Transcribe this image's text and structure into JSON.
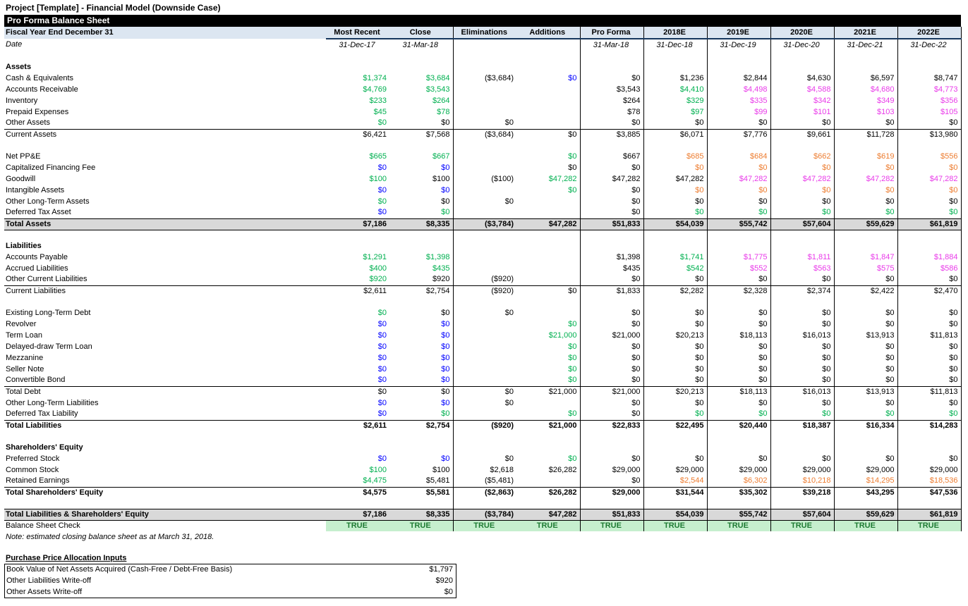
{
  "page_title": "Project [Template] - Financial Model (Downside Case)",
  "sheet": {
    "banner": "Pro Forma Balance Sheet",
    "header_label": "Fiscal Year End December 31",
    "date_label": "Date",
    "columns": [
      "Most Recent",
      "Close",
      "Eliminations",
      "Additions",
      "Pro Forma",
      "2018E",
      "2019E",
      "2020E",
      "2021E",
      "2022E"
    ],
    "dates": [
      "31-Dec-17",
      "31-Mar-18",
      "",
      "",
      "31-Mar-18",
      "31-Dec-18",
      "31-Dec-19",
      "31-Dec-20",
      "31-Dec-21",
      "31-Dec-22"
    ],
    "rows": [
      {
        "t": "blank"
      },
      {
        "t": "section",
        "label": "Assets"
      },
      {
        "t": "data",
        "label": "Cash & Equivalents",
        "v": [
          "$1,374",
          "$3,684",
          "($3,684)",
          "$0",
          "$0",
          "$1,236",
          "$2,844",
          "$4,630",
          "$6,597",
          "$8,747"
        ],
        "c": [
          "g",
          "g",
          "k",
          "b",
          "k",
          "k",
          "k",
          "k",
          "k",
          "k"
        ]
      },
      {
        "t": "data",
        "label": "Accounts Receivable",
        "v": [
          "$4,769",
          "$3,543",
          "",
          "",
          "$3,543",
          "$4,410",
          "$4,498",
          "$4,588",
          "$4,680",
          "$4,773"
        ],
        "c": [
          "g",
          "g",
          "",
          "",
          "k",
          "g",
          "m",
          "m",
          "m",
          "m"
        ]
      },
      {
        "t": "data",
        "label": "Inventory",
        "v": [
          "$233",
          "$264",
          "",
          "",
          "$264",
          "$329",
          "$335",
          "$342",
          "$349",
          "$356"
        ],
        "c": [
          "g",
          "g",
          "",
          "",
          "k",
          "g",
          "m",
          "m",
          "m",
          "m"
        ]
      },
      {
        "t": "data",
        "label": "Prepaid Expenses",
        "v": [
          "$45",
          "$78",
          "",
          "",
          "$78",
          "$97",
          "$99",
          "$101",
          "$103",
          "$105"
        ],
        "c": [
          "g",
          "g",
          "",
          "",
          "k",
          "g",
          "m",
          "m",
          "m",
          "m"
        ]
      },
      {
        "t": "data",
        "label": "Other Assets",
        "v": [
          "$0",
          "$0",
          "$0",
          "",
          "$0",
          "$0",
          "$0",
          "$0",
          "$0",
          "$0"
        ],
        "c": [
          "g",
          "k",
          "k",
          "",
          "k",
          "k",
          "k",
          "k",
          "k",
          "k"
        ]
      },
      {
        "t": "subtotal",
        "label": "Current Assets",
        "v": [
          "$6,421",
          "$7,568",
          "($3,684)",
          "$0",
          "$3,885",
          "$6,071",
          "$7,776",
          "$9,661",
          "$11,728",
          "$13,980"
        ]
      },
      {
        "t": "blank"
      },
      {
        "t": "data",
        "label": "Net PP&E",
        "v": [
          "$665",
          "$667",
          "",
          "$0",
          "$667",
          "$685",
          "$684",
          "$662",
          "$619",
          "$556"
        ],
        "c": [
          "g",
          "g",
          "",
          "g",
          "k",
          "o",
          "o",
          "o",
          "o",
          "o"
        ]
      },
      {
        "t": "data",
        "label": "Capitalized Financing Fee",
        "v": [
          "$0",
          "$0",
          "",
          "$0",
          "$0",
          "$0",
          "$0",
          "$0",
          "$0",
          "$0"
        ],
        "c": [
          "b",
          "b",
          "",
          "k",
          "k",
          "o",
          "o",
          "o",
          "o",
          "o"
        ]
      },
      {
        "t": "data",
        "label": "Goodwill",
        "v": [
          "$100",
          "$100",
          "($100)",
          "$47,282",
          "$47,282",
          "$47,282",
          "$47,282",
          "$47,282",
          "$47,282",
          "$47,282"
        ],
        "c": [
          "g",
          "k",
          "k",
          "g",
          "k",
          "k",
          "m",
          "m",
          "m",
          "m"
        ]
      },
      {
        "t": "data",
        "label": "Intangible Assets",
        "v": [
          "$0",
          "$0",
          "",
          "$0",
          "$0",
          "$0",
          "$0",
          "$0",
          "$0",
          "$0"
        ],
        "c": [
          "b",
          "b",
          "",
          "g",
          "k",
          "o",
          "o",
          "o",
          "o",
          "o"
        ]
      },
      {
        "t": "data",
        "label": "Other Long-Term Assets",
        "v": [
          "$0",
          "$0",
          "$0",
          "",
          "$0",
          "$0",
          "$0",
          "$0",
          "$0",
          "$0"
        ],
        "c": [
          "g",
          "k",
          "k",
          "",
          "k",
          "k",
          "k",
          "k",
          "k",
          "k"
        ]
      },
      {
        "t": "data",
        "label": "Deferred Tax Asset",
        "v": [
          "$0",
          "$0",
          "",
          "",
          "$0",
          "$0",
          "$0",
          "$0",
          "$0",
          "$0"
        ],
        "c": [
          "b",
          "g",
          "",
          "",
          "k",
          "g",
          "g",
          "g",
          "g",
          "g"
        ]
      },
      {
        "t": "total",
        "label": "Total Assets",
        "v": [
          "$7,186",
          "$8,335",
          "($3,784)",
          "$47,282",
          "$51,833",
          "$54,039",
          "$55,742",
          "$57,604",
          "$59,629",
          "$61,819"
        ]
      },
      {
        "t": "blank"
      },
      {
        "t": "section",
        "label": "Liabilities"
      },
      {
        "t": "data",
        "label": "Accounts Payable",
        "v": [
          "$1,291",
          "$1,398",
          "",
          "",
          "$1,398",
          "$1,741",
          "$1,775",
          "$1,811",
          "$1,847",
          "$1,884"
        ],
        "c": [
          "g",
          "g",
          "",
          "",
          "k",
          "g",
          "m",
          "m",
          "m",
          "m"
        ]
      },
      {
        "t": "data",
        "label": "Accrued Liabilities",
        "v": [
          "$400",
          "$435",
          "",
          "",
          "$435",
          "$542",
          "$552",
          "$563",
          "$575",
          "$586"
        ],
        "c": [
          "g",
          "g",
          "",
          "",
          "k",
          "g",
          "m",
          "m",
          "m",
          "m"
        ]
      },
      {
        "t": "data",
        "label": "Other Current Liabilities",
        "v": [
          "$920",
          "$920",
          "($920)",
          "",
          "$0",
          "$0",
          "$0",
          "$0",
          "$0",
          "$0"
        ],
        "c": [
          "g",
          "k",
          "k",
          "",
          "k",
          "k",
          "k",
          "k",
          "k",
          "k"
        ]
      },
      {
        "t": "subtotal",
        "label": "Current Liabilities",
        "v": [
          "$2,611",
          "$2,754",
          "($920)",
          "$0",
          "$1,833",
          "$2,282",
          "$2,328",
          "$2,374",
          "$2,422",
          "$2,470"
        ]
      },
      {
        "t": "blank"
      },
      {
        "t": "data",
        "label": "Existing Long-Term Debt",
        "v": [
          "$0",
          "$0",
          "$0",
          "",
          "$0",
          "$0",
          "$0",
          "$0",
          "$0",
          "$0"
        ],
        "c": [
          "g",
          "k",
          "k",
          "",
          "k",
          "k",
          "k",
          "k",
          "k",
          "k"
        ]
      },
      {
        "t": "data",
        "label": "Revolver",
        "v": [
          "$0",
          "$0",
          "",
          "$0",
          "$0",
          "$0",
          "$0",
          "$0",
          "$0",
          "$0"
        ],
        "c": [
          "b",
          "b",
          "",
          "g",
          "k",
          "k",
          "k",
          "k",
          "k",
          "k"
        ]
      },
      {
        "t": "data",
        "label": "Term Loan",
        "v": [
          "$0",
          "$0",
          "",
          "$21,000",
          "$21,000",
          "$20,213",
          "$18,113",
          "$16,013",
          "$13,913",
          "$11,813"
        ],
        "c": [
          "b",
          "b",
          "",
          "g",
          "k",
          "k",
          "k",
          "k",
          "k",
          "k"
        ]
      },
      {
        "t": "data",
        "label": "Delayed-draw Term Loan",
        "v": [
          "$0",
          "$0",
          "",
          "$0",
          "$0",
          "$0",
          "$0",
          "$0",
          "$0",
          "$0"
        ],
        "c": [
          "b",
          "b",
          "",
          "g",
          "k",
          "k",
          "k",
          "k",
          "k",
          "k"
        ]
      },
      {
        "t": "data",
        "label": "Mezzanine",
        "v": [
          "$0",
          "$0",
          "",
          "$0",
          "$0",
          "$0",
          "$0",
          "$0",
          "$0",
          "$0"
        ],
        "c": [
          "b",
          "b",
          "",
          "g",
          "k",
          "k",
          "k",
          "k",
          "k",
          "k"
        ]
      },
      {
        "t": "data",
        "label": "Seller Note",
        "v": [
          "$0",
          "$0",
          "",
          "$0",
          "$0",
          "$0",
          "$0",
          "$0",
          "$0",
          "$0"
        ],
        "c": [
          "b",
          "b",
          "",
          "g",
          "k",
          "k",
          "k",
          "k",
          "k",
          "k"
        ]
      },
      {
        "t": "data",
        "label": "Convertible Bond",
        "v": [
          "$0",
          "$0",
          "",
          "$0",
          "$0",
          "$0",
          "$0",
          "$0",
          "$0",
          "$0"
        ],
        "c": [
          "b",
          "b",
          "",
          "g",
          "k",
          "k",
          "k",
          "k",
          "k",
          "k"
        ]
      },
      {
        "t": "subtotal",
        "label": "Total Debt",
        "v": [
          "$0",
          "$0",
          "$0",
          "$21,000",
          "$21,000",
          "$20,213",
          "$18,113",
          "$16,013",
          "$13,913",
          "$11,813"
        ]
      },
      {
        "t": "data",
        "label": "Other Long-Term Liabilities",
        "v": [
          "$0",
          "$0",
          "$0",
          "",
          "$0",
          "$0",
          "$0",
          "$0",
          "$0",
          "$0"
        ],
        "c": [
          "b",
          "b",
          "k",
          "",
          "k",
          "k",
          "k",
          "k",
          "k",
          "k"
        ]
      },
      {
        "t": "data",
        "label": "Deferred Tax Liability",
        "v": [
          "$0",
          "$0",
          "",
          "$0",
          "$0",
          "$0",
          "$0",
          "$0",
          "$0",
          "$0"
        ],
        "c": [
          "b",
          "g",
          "",
          "g",
          "k",
          "g",
          "g",
          "g",
          "g",
          "g"
        ]
      },
      {
        "t": "subtotal",
        "bold": true,
        "label": "Total Liabilities",
        "v": [
          "$2,611",
          "$2,754",
          "($920)",
          "$21,000",
          "$22,833",
          "$22,495",
          "$20,440",
          "$18,387",
          "$16,334",
          "$14,283"
        ]
      },
      {
        "t": "blank"
      },
      {
        "t": "section",
        "label": "Shareholders' Equity"
      },
      {
        "t": "data",
        "label": "Preferred Stock",
        "v": [
          "$0",
          "$0",
          "$0",
          "$0",
          "$0",
          "$0",
          "$0",
          "$0",
          "$0",
          "$0"
        ],
        "c": [
          "b",
          "b",
          "k",
          "g",
          "k",
          "k",
          "k",
          "k",
          "k",
          "k"
        ]
      },
      {
        "t": "data",
        "label": "Common Stock",
        "v": [
          "$100",
          "$100",
          "$2,618",
          "$26,282",
          "$29,000",
          "$29,000",
          "$29,000",
          "$29,000",
          "$29,000",
          "$29,000"
        ],
        "c": [
          "g",
          "k",
          "k",
          "k",
          "k",
          "k",
          "k",
          "k",
          "k",
          "k"
        ]
      },
      {
        "t": "data",
        "label": "Retained Earnings",
        "v": [
          "$4,475",
          "$5,481",
          "($5,481)",
          "",
          "$0",
          "$2,544",
          "$6,302",
          "$10,218",
          "$14,295",
          "$18,536"
        ],
        "c": [
          "g",
          "k",
          "k",
          "",
          "k",
          "o",
          "o",
          "o",
          "o",
          "o"
        ]
      },
      {
        "t": "subtotal",
        "bold": true,
        "label": "Total Shareholders' Equity",
        "v": [
          "$4,575",
          "$5,581",
          "($2,863)",
          "$26,282",
          "$29,000",
          "$31,544",
          "$35,302",
          "$39,218",
          "$43,295",
          "$47,536"
        ]
      },
      {
        "t": "blank"
      },
      {
        "t": "total",
        "label": "Total Liabilities & Shareholders' Equity",
        "v": [
          "$7,186",
          "$8,335",
          "($3,784)",
          "$47,282",
          "$51,833",
          "$54,039",
          "$55,742",
          "$57,604",
          "$59,629",
          "$61,819"
        ]
      },
      {
        "t": "check",
        "label": "Balance Sheet Check",
        "v": [
          "TRUE",
          "TRUE",
          "TRUE",
          "TRUE",
          "TRUE",
          "TRUE",
          "TRUE",
          "TRUE",
          "TRUE",
          "TRUE"
        ]
      },
      {
        "t": "note",
        "label": "Note: estimated closing balance sheet as at March 31, 2018."
      }
    ]
  },
  "ppa": {
    "title": "Purchase Price Allocation Inputs",
    "rows": [
      {
        "label": "Book Value of Net Assets Acquired (Cash-Free / Debt-Free Basis)",
        "value": "$1,797"
      },
      {
        "label": "Other Liabilities Write-off",
        "value": "$920"
      },
      {
        "label": "Other Assets Write-off",
        "value": "$0"
      }
    ]
  },
  "colors": {
    "actual_green": "#00B050",
    "input_blue": "#0000FF",
    "projection_magenta": "#E93BE9",
    "projection_orange": "#ED7D31",
    "header_bg": "#DCE6F1",
    "header_underline": "#17375E",
    "total_row_bg": "#D9D9D9",
    "check_bg": "#C6EFCE",
    "check_text": "#1E7B33",
    "banner_bg": "#000000",
    "banner_text": "#FFFFFF"
  }
}
